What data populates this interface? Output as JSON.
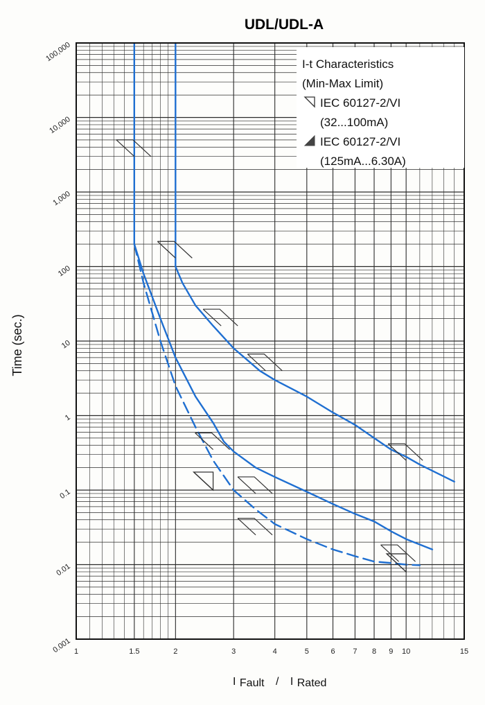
{
  "chart_data": {
    "type": "line",
    "title": "UDL/UDL-A",
    "ylabel": "Time (sec.)",
    "xlabel_parts": [
      "I",
      "Fault",
      "/",
      "I",
      "Rated"
    ],
    "x_scale": "log",
    "y_scale": "log",
    "xlim": [
      1,
      15
    ],
    "ylim": [
      0.001,
      100000
    ],
    "x_ticks": [
      1,
      1.5,
      2,
      3,
      4,
      5,
      6,
      7,
      8,
      9,
      10,
      15
    ],
    "x_tick_labels": [
      "1",
      "1.5",
      "2",
      "3",
      "4",
      "5",
      "6",
      "7",
      "8",
      "9",
      "10",
      "15"
    ],
    "y_ticks": [
      0.001,
      0.01,
      0.1,
      1,
      10,
      100,
      1000,
      10000,
      100000
    ],
    "y_tick_labels": [
      "0.001",
      "0.01",
      "0.1",
      "1",
      "10",
      "100",
      "1,000",
      "10,000",
      "100,000"
    ],
    "grid": true,
    "legend_position": "top-right",
    "legend": {
      "title_line1": "I-t Characteristics",
      "title_line2": "(Min-Max Limit)",
      "entries": [
        {
          "marker": "open-triangle",
          "line1": "IEC 60127-2/VI",
          "line2": "(32...100mA)"
        },
        {
          "marker": "filled-triangle",
          "line1": "IEC 60127-2/VI",
          "line2": "(125mA...6.30A)"
        }
      ]
    },
    "colors": {
      "curve": "#1f6fd1",
      "grid": "#2a2a2a",
      "marker": "#333333"
    },
    "series": [
      {
        "style": "solid",
        "x": [
          2.0,
          2.0,
          2.0,
          2.1,
          2.3,
          2.6,
          3.0,
          3.6,
          4.0,
          5.0,
          6.0,
          7.0,
          8.0,
          9.0,
          10.0,
          11.0,
          14.0
        ],
        "y": [
          100000,
          200,
          100,
          60,
          30,
          16,
          8,
          4,
          3,
          1.8,
          1.1,
          0.75,
          0.5,
          0.35,
          0.28,
          0.22,
          0.13
        ]
      },
      {
        "style": "solid",
        "x": [
          1.5,
          1.5,
          1.5,
          1.6,
          1.8,
          2.0,
          2.3,
          2.6,
          2.8,
          3.0,
          3.5,
          4.0,
          5.0,
          6.0,
          7.0,
          8.0,
          9.0,
          10.0,
          12.0
        ],
        "y": [
          100000,
          1000,
          200,
          80,
          20,
          6,
          1.8,
          0.8,
          0.45,
          0.33,
          0.2,
          0.15,
          0.095,
          0.065,
          0.048,
          0.038,
          0.028,
          0.022,
          0.016
        ]
      },
      {
        "style": "dashed",
        "x": [
          1.5,
          1.6,
          1.8,
          2.0,
          2.3,
          2.6,
          3.0,
          3.5,
          4.0,
          5.0,
          6.0,
          7.0,
          8.0,
          9.0,
          10.0,
          11.0
        ],
        "y": [
          200,
          60,
          10,
          2.5,
          0.7,
          0.25,
          0.1,
          0.055,
          0.035,
          0.022,
          0.016,
          0.013,
          0.011,
          0.0105,
          0.01,
          0.0098
        ]
      }
    ],
    "limit_markers": [
      {
        "type": "open",
        "x": 1.5,
        "y": 3000
      },
      {
        "type": "open",
        "x": 2.0,
        "y": 130
      },
      {
        "type": "open",
        "x": 2.75,
        "y": 16
      },
      {
        "type": "open",
        "x": 3.75,
        "y": 4
      },
      {
        "type": "open",
        "x": 2.6,
        "y": 0.35
      },
      {
        "type": "filled",
        "x": 2.6,
        "y": 0.1
      },
      {
        "type": "open",
        "x": 3.5,
        "y": 0.09
      },
      {
        "type": "open",
        "x": 3.5,
        "y": 0.025
      },
      {
        "type": "open",
        "x": 10.0,
        "y": 0.25
      },
      {
        "type": "open",
        "x": 9.5,
        "y": 0.011
      },
      {
        "type": "filled",
        "x": 10.0,
        "y": 0.008
      }
    ]
  }
}
